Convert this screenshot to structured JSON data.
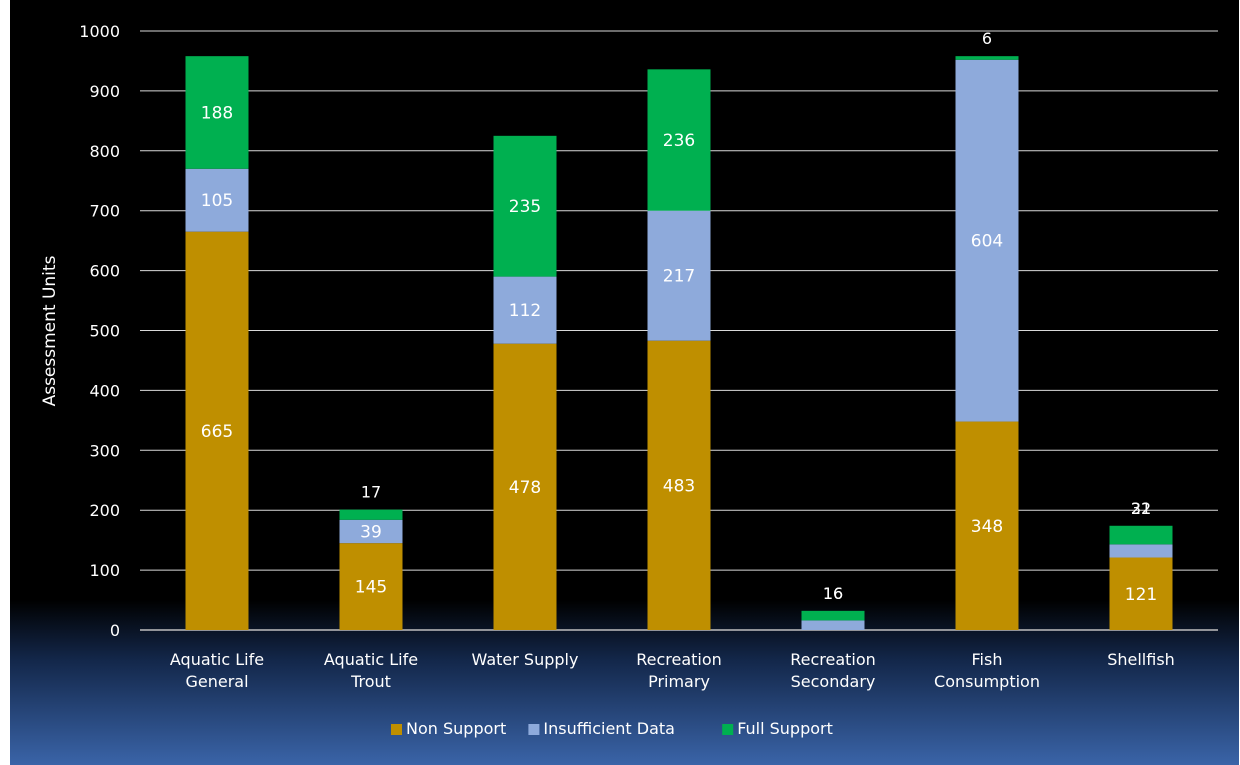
{
  "chart_data": {
    "type": "bar",
    "stacked": true,
    "categories": [
      [
        "Aquatic Life",
        "General"
      ],
      [
        "Aquatic Life",
        "Trout"
      ],
      [
        "Water Supply"
      ],
      [
        "Recreation",
        "Primary"
      ],
      [
        "Recreation",
        "Secondary"
      ],
      [
        "Fish",
        "Consumption"
      ],
      [
        "Shellfish"
      ]
    ],
    "series": [
      {
        "name": "Non Support",
        "color": "#bf8f00",
        "values": [
          665,
          145,
          478,
          483,
          0,
          348,
          121
        ],
        "labels": [
          "665",
          "145",
          "478",
          "483",
          "",
          "348",
          "121"
        ]
      },
      {
        "name": "Insufficient Data",
        "color": "#8eaadb",
        "values": [
          105,
          39,
          112,
          217,
          16,
          604,
          22
        ],
        "labels": [
          "105",
          "39",
          "112",
          "217",
          "16",
          "604",
          "22"
        ]
      },
      {
        "name": "Full Support",
        "color": "#00b050",
        "values": [
          188,
          17,
          235,
          236,
          16,
          6,
          31
        ],
        "labels": [
          "188",
          "17",
          "235",
          "236",
          "16",
          "6",
          "31"
        ]
      }
    ],
    "title": "",
    "xlabel": "",
    "ylabel": "Assessment Units",
    "ylim": [
      0,
      1000
    ],
    "yticks": [
      0,
      100,
      200,
      300,
      400,
      500,
      600,
      700,
      800,
      900,
      1000
    ],
    "grid": true,
    "legend": "bottom"
  }
}
